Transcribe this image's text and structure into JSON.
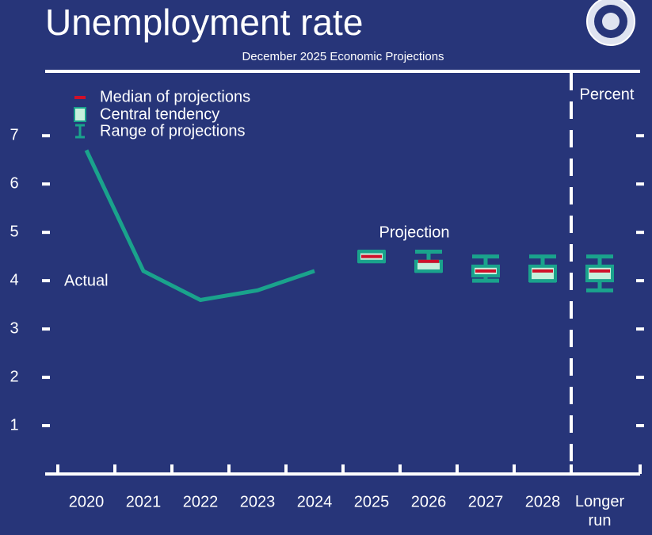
{
  "chart_data": {
    "type": "line",
    "title": "Unemployment rate",
    "subtitle": "December 2025 Economic Projections",
    "y_label": "Percent",
    "projection_label": "Projection",
    "categories": [
      "2020",
      "2021",
      "2022",
      "2023",
      "2024",
      "2025",
      "2026",
      "2027",
      "2028",
      "Longer run"
    ],
    "series": [
      {
        "name": "Actual",
        "color": "#1aa38c",
        "values": [
          6.7,
          4.2,
          3.6,
          3.8,
          4.2,
          null,
          null,
          null,
          null,
          null
        ]
      }
    ],
    "projections": {
      "median": {
        "name": "Median of projections",
        "color": "#d0102a",
        "values": [
          null,
          null,
          null,
          null,
          null,
          4.5,
          4.4,
          4.2,
          4.2,
          4.2
        ]
      },
      "central_tendency": {
        "name": "Central tendency",
        "color": "#c6f0dc",
        "low": [
          null,
          null,
          null,
          null,
          null,
          4.4,
          4.2,
          4.1,
          4.0,
          4.0
        ],
        "high": [
          null,
          null,
          null,
          null,
          null,
          4.6,
          4.4,
          4.3,
          4.3,
          4.3
        ]
      },
      "range": {
        "name": "Range of projections",
        "color": "#1aa38c",
        "low": [
          null,
          null,
          null,
          null,
          null,
          4.4,
          4.2,
          4.0,
          4.0,
          3.8
        ],
        "high": [
          null,
          null,
          null,
          null,
          null,
          4.6,
          4.6,
          4.5,
          4.5,
          4.5
        ]
      }
    },
    "ylim": [
      0,
      8.25
    ],
    "yticks": [
      1,
      2,
      3,
      4,
      5,
      6,
      7
    ]
  }
}
